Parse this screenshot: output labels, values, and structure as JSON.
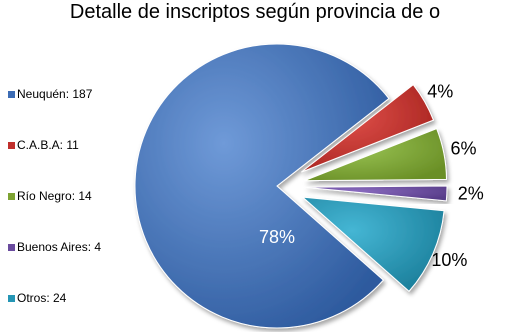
{
  "chart_data": {
    "type": "pie",
    "title": "Detalle de inscriptos según provincia de o",
    "categories": [
      "Neuquén",
      "C.A.B.A",
      "Río Negro",
      "Buenos Aires",
      "Otros"
    ],
    "values": [
      187,
      11,
      14,
      4,
      24
    ],
    "percent_labels": [
      "78%",
      "4%",
      "6%",
      "2%",
      "10%"
    ],
    "legend_labels": [
      "Neuquén: 187",
      "C.A.B.A: 11",
      "Río Negro: 14",
      "Buenos Aires: 4",
      "Otros: 24"
    ],
    "colors": [
      "#3d6db5",
      "#c0302c",
      "#7ea333",
      "#6a4b9e",
      "#2596b5"
    ],
    "exploded": [
      false,
      true,
      true,
      true,
      true
    ],
    "legend_position": "left"
  }
}
